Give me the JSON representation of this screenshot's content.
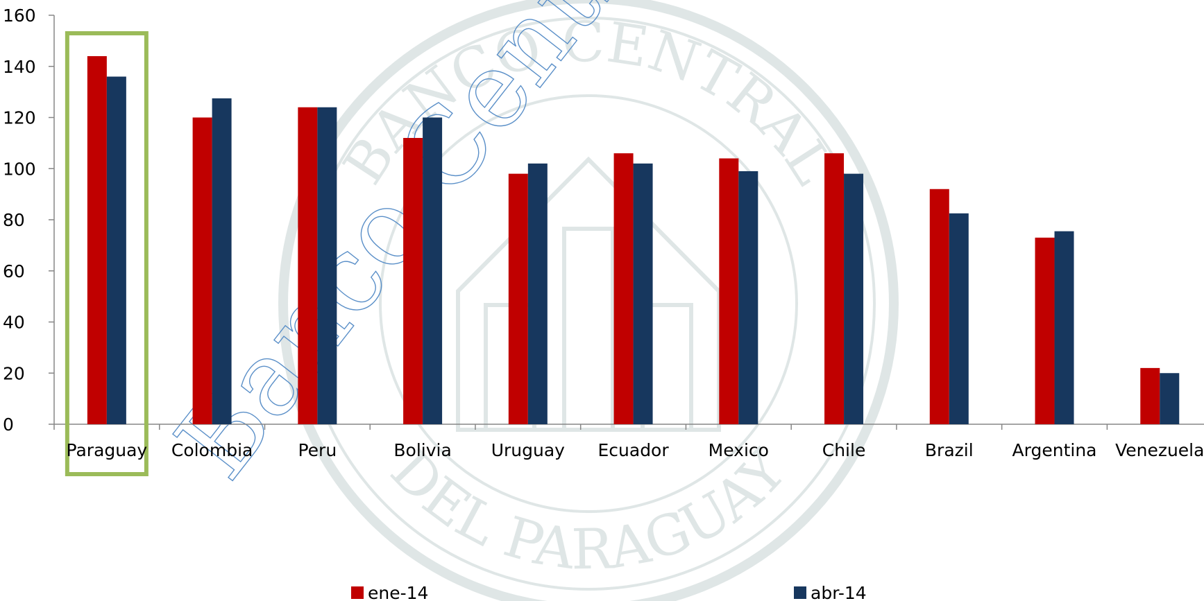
{
  "chart_data": {
    "type": "bar",
    "categories": [
      "Paraguay",
      "Colombia",
      "Peru",
      "Bolivia",
      "Uruguay",
      "Ecuador",
      "Mexico",
      "Chile",
      "Brazil",
      "Argentina",
      "Venezuela"
    ],
    "series": [
      {
        "name": "ene-14",
        "values": [
          144,
          120,
          124,
          112,
          98,
          106,
          104,
          106,
          92,
          73,
          22
        ]
      },
      {
        "name": "abr-14",
        "values": [
          136,
          127.5,
          124,
          120,
          102,
          102,
          99,
          98,
          82.5,
          75.5,
          20
        ]
      }
    ],
    "y_ticks": [
      "0",
      "20",
      "40",
      "60",
      "80",
      "100",
      "120",
      "140",
      "160"
    ],
    "ylim": [
      0,
      160
    ],
    "title": "",
    "xlabel": "",
    "ylabel": "",
    "grid": false,
    "legend_position": "bottom",
    "highlighted_category": "Paraguay"
  },
  "colors": {
    "series": [
      "#c00000",
      "#17375e"
    ],
    "highlight_box": "#9bbb59",
    "axis": "#868686"
  },
  "watermark": {
    "seal_text_top": "BANCO CENTRAL",
    "seal_text_bottom": "DEL PARAGUAY",
    "diagonal_text": "Banco Central del Paraguay"
  }
}
